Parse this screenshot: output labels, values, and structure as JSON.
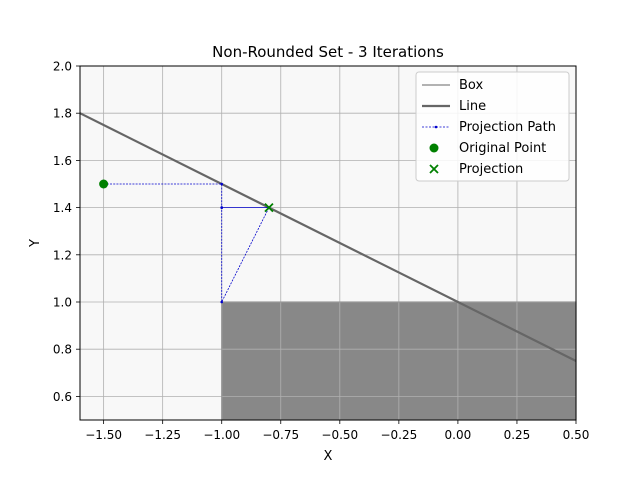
{
  "chart_data": {
    "type": "line",
    "title": "Non-Rounded Set - 3 Iterations",
    "xlabel": "X",
    "ylabel": "Y",
    "xlim": [
      -1.6,
      0.5
    ],
    "ylim": [
      0.5,
      2.0
    ],
    "xticks": [
      -1.5,
      -1.25,
      -1.0,
      -0.75,
      -0.5,
      -0.25,
      0.0,
      0.25,
      0.5
    ],
    "xtick_labels": [
      "−1.50",
      "−1.25",
      "−1.00",
      "−0.75",
      "−0.50",
      "−0.25",
      "0.00",
      "0.25",
      "0.50"
    ],
    "yticks": [
      0.6,
      0.8,
      1.0,
      1.2,
      1.4,
      1.6,
      1.8,
      2.0
    ],
    "ytick_labels": [
      "0.6",
      "0.8",
      "1.0",
      "1.2",
      "1.4",
      "1.6",
      "1.8",
      "2.0"
    ],
    "grid": true,
    "legend_position": "top-right",
    "box": {
      "x": [
        -1.0,
        0.5
      ],
      "y": [
        0.5,
        1.0
      ],
      "fill": "#888888",
      "edge": "#999999"
    },
    "line": {
      "x": [
        -1.6,
        0.5
      ],
      "y": [
        1.8,
        0.75
      ],
      "color": "#666666"
    },
    "projection_path": {
      "x": [
        -1.5,
        -1.0,
        -1.0,
        -1.0,
        -0.8,
        -1.0,
        -0.8
      ],
      "y": [
        1.5,
        1.5,
        1.4,
        1.0,
        1.4,
        1.4,
        1.4
      ],
      "color": "#0000cc"
    },
    "original_point": {
      "x": -1.5,
      "y": 1.5,
      "color": "#008000"
    },
    "projection": {
      "x": -0.8,
      "y": 1.4,
      "color": "#008000"
    },
    "legend": [
      "Box",
      "Line",
      "Projection Path",
      "Original Point",
      "Projection"
    ],
    "plot_background": "#f8f8f8"
  }
}
